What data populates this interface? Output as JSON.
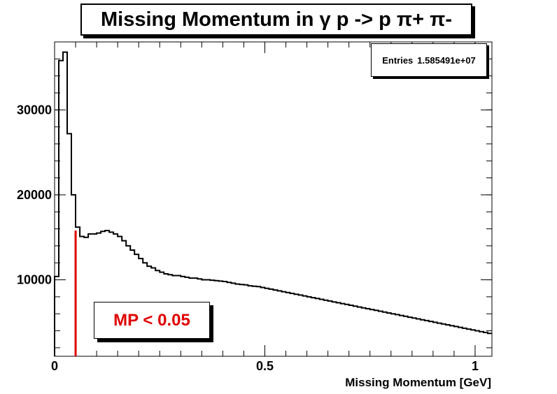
{
  "chart_data": {
    "type": "histogram",
    "title": "Missing Momentum in γ p -> p π+ π-",
    "xlabel": "Missing Momentum [GeV]",
    "ylabel": "",
    "xlim": [
      0,
      1.04
    ],
    "ylim": [
      1000,
      38000
    ],
    "grid": false,
    "x_ticks": [
      {
        "value": 0,
        "label": "0"
      },
      {
        "value": 0.5,
        "label": "0.5"
      },
      {
        "value": 1,
        "label": "1"
      }
    ],
    "y_ticks": [
      {
        "value": 10000,
        "label": "10000"
      },
      {
        "value": 20000,
        "label": "20000"
      },
      {
        "value": 30000,
        "label": "30000"
      }
    ],
    "bin_width": 0.01,
    "bin_start": 0,
    "values": [
      10400,
      35800,
      36800,
      27200,
      20000,
      16200,
      15100,
      15000,
      15400,
      15400,
      15500,
      15700,
      15800,
      15600,
      15400,
      15100,
      14600,
      14000,
      13500,
      13000,
      12500,
      12000,
      11600,
      11400,
      11100,
      10900,
      10700,
      10600,
      10500,
      10500,
      10400,
      10300,
      10200,
      10200,
      10100,
      10000,
      10000,
      9950,
      9900,
      9850,
      9800,
      9700,
      9600,
      9500,
      9450,
      9400,
      9300,
      9250,
      9200,
      9100,
      9000,
      8900,
      8800,
      8700,
      8600,
      8500,
      8400,
      8300,
      8200,
      8100,
      8000,
      7900,
      7800,
      7700,
      7600,
      7500,
      7400,
      7300,
      7200,
      7100,
      7000,
      6900,
      6800,
      6700,
      6600,
      6500,
      6400,
      6300,
      6200,
      6100,
      6000,
      5900,
      5800,
      5700,
      5600,
      5500,
      5400,
      5300,
      5200,
      5100,
      5000,
      4900,
      4800,
      4700,
      4600,
      4500,
      4400,
      4300,
      4200,
      4100,
      4000,
      3900,
      3800,
      3700
    ],
    "cut": {
      "x": 0.05,
      "y_top": 15800,
      "label": "MP < 0.05",
      "color": "#e00000"
    },
    "stats": {
      "label": "Entries",
      "value": "1.585491e+07"
    },
    "line_color": "#000000"
  }
}
